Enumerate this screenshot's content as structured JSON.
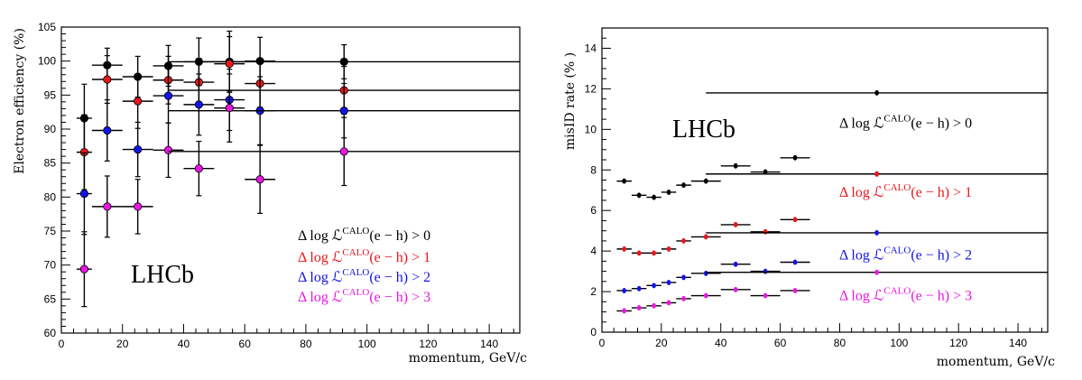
{
  "chart_data": [
    {
      "type": "scatter",
      "xlabel": "momentum, GeV/c",
      "ylabel": "Electron efficiency (%)",
      "xlim": [
        0,
        150
      ],
      "ylim": [
        60,
        105
      ],
      "xticks": [
        0,
        20,
        40,
        60,
        80,
        100,
        120,
        140
      ],
      "yticks": [
        60,
        65,
        70,
        75,
        80,
        85,
        90,
        95,
        100,
        105
      ],
      "annotation": "LHCb",
      "legend_position": "bottom-right",
      "series": [
        {
          "name": "Δ log ℒCALO(e − h) > 0",
          "label": {
            "prefix": "Δ log ℒ",
            "sup": "CALO",
            "suffix": "(e − h) > 0"
          },
          "color": "#000000",
          "points": [
            {
              "x": 7.5,
              "y": 91.6,
              "xerr": 2.5,
              "yerr": 5.0
            },
            {
              "x": 15,
              "y": 99.4,
              "xerr": 5,
              "yerr": 2.5
            },
            {
              "x": 25,
              "y": 97.7,
              "xerr": 5,
              "yerr": 3.0
            },
            {
              "x": 35,
              "y": 99.3,
              "xerr": 5,
              "yerr": 3.0
            },
            {
              "x": 45,
              "y": 99.9,
              "xerr": 5,
              "yerr": 3.5
            },
            {
              "x": 55,
              "y": 99.9,
              "xerr": 5,
              "yerr": 4.5
            },
            {
              "x": 65,
              "y": 100.0,
              "xerr": 5,
              "yerr": 3.5
            },
            {
              "x": 92.5,
              "y": 99.9,
              "xerr": 57.5,
              "yerr": 2.5
            }
          ]
        },
        {
          "name": "Δ log ℒCALO(e − h) > 1",
          "label": {
            "prefix": "Δ log ℒ",
            "sup": "CALO",
            "suffix": "(e − h) > 1"
          },
          "color": "#e8161c",
          "points": [
            {
              "x": 7.5,
              "y": 86.6,
              "xerr": 2.5,
              "yerr": 5.5
            },
            {
              "x": 15,
              "y": 97.3,
              "xerr": 5,
              "yerr": 3.5
            },
            {
              "x": 25,
              "y": 94.1,
              "xerr": 5,
              "yerr": 4.0
            },
            {
              "x": 35,
              "y": 97.2,
              "xerr": 5,
              "yerr": 3.5
            },
            {
              "x": 45,
              "y": 96.9,
              "xerr": 5,
              "yerr": 3.5
            },
            {
              "x": 55,
              "y": 99.6,
              "xerr": 5,
              "yerr": 4.0
            },
            {
              "x": 65,
              "y": 96.7,
              "xerr": 5,
              "yerr": 3.5
            },
            {
              "x": 92.5,
              "y": 95.7,
              "xerr": 57.5,
              "yerr": 3.5
            }
          ]
        },
        {
          "name": "Δ log ℒCALO(e − h) > 2",
          "label": {
            "prefix": "Δ log ℒ",
            "sup": "CALO",
            "suffix": "(e − h) > 2"
          },
          "color": "#1414e6",
          "points": [
            {
              "x": 7.5,
              "y": 80.5,
              "xerr": 2.5,
              "yerr": 6.0
            },
            {
              "x": 15,
              "y": 89.8,
              "xerr": 5,
              "yerr": 4.5
            },
            {
              "x": 25,
              "y": 87.0,
              "xerr": 5,
              "yerr": 4.0
            },
            {
              "x": 35,
              "y": 94.9,
              "xerr": 5,
              "yerr": 4.0
            },
            {
              "x": 45,
              "y": 93.6,
              "xerr": 5,
              "yerr": 4.5
            },
            {
              "x": 55,
              "y": 94.3,
              "xerr": 5,
              "yerr": 4.5
            },
            {
              "x": 65,
              "y": 92.7,
              "xerr": 5,
              "yerr": 5.0
            },
            {
              "x": 92.5,
              "y": 92.7,
              "xerr": 57.5,
              "yerr": 4.0
            }
          ]
        },
        {
          "name": "Δ log ℒCALO(e − h) > 3",
          "label": {
            "prefix": "Δ log ℒ",
            "sup": "CALO",
            "suffix": "(e − h) > 3"
          },
          "color": "#e817e0",
          "points": [
            {
              "x": 7.5,
              "y": 69.4,
              "xerr": 2.5,
              "yerr": 5.5
            },
            {
              "x": 15,
              "y": 78.6,
              "xerr": 5,
              "yerr": 4.5
            },
            {
              "x": 25,
              "y": 78.6,
              "xerr": 5,
              "yerr": 4.0
            },
            {
              "x": 35,
              "y": 86.9,
              "xerr": 5,
              "yerr": 4.0
            },
            {
              "x": 45,
              "y": 84.2,
              "xerr": 5,
              "yerr": 4.0
            },
            {
              "x": 55,
              "y": 93.1,
              "xerr": 5,
              "yerr": 5.0
            },
            {
              "x": 65,
              "y": 82.6,
              "xerr": 5,
              "yerr": 5.0
            },
            {
              "x": 92.5,
              "y": 86.7,
              "xerr": 57.5,
              "yerr": 5.0
            }
          ]
        }
      ]
    },
    {
      "type": "scatter",
      "xlabel": "momentum, GeV/c",
      "ylabel": "misID rate (% )",
      "xlim": [
        0,
        150
      ],
      "ylim": [
        0,
        15
      ],
      "xticks": [
        0,
        20,
        40,
        60,
        80,
        100,
        120,
        140
      ],
      "yticks": [
        0,
        2,
        4,
        6,
        8,
        10,
        12,
        14
      ],
      "annotation": "LHCb",
      "legend_position": "inline-right",
      "series": [
        {
          "name": "Δ log ℒCALO(e − h) > 0",
          "label": {
            "prefix": "Δ log ℒ",
            "sup": "CALO",
            "suffix": "(e − h) > 0"
          },
          "label_y": 10.3,
          "color": "#000000",
          "points": [
            {
              "x": 7.5,
              "y": 7.45,
              "xerr": 2.5,
              "yerr": 0.12
            },
            {
              "x": 12.5,
              "y": 6.75,
              "xerr": 2.5,
              "yerr": 0.12
            },
            {
              "x": 17.5,
              "y": 6.65,
              "xerr": 2.5,
              "yerr": 0.12
            },
            {
              "x": 22.5,
              "y": 6.9,
              "xerr": 2.5,
              "yerr": 0.12
            },
            {
              "x": 27.5,
              "y": 7.25,
              "xerr": 2.5,
              "yerr": 0.12
            },
            {
              "x": 35,
              "y": 7.45,
              "xerr": 5,
              "yerr": 0.12
            },
            {
              "x": 45,
              "y": 8.2,
              "xerr": 5,
              "yerr": 0.12
            },
            {
              "x": 55,
              "y": 7.9,
              "xerr": 5,
              "yerr": 0.12
            },
            {
              "x": 65,
              "y": 8.6,
              "xerr": 5,
              "yerr": 0.12
            },
            {
              "x": 92.5,
              "y": 11.8,
              "xerr": 57.5,
              "yerr": 0.1
            },
            {
              "x": 92.5,
              "y": 7.8,
              "xerr": 57.5,
              "yerr": 0.0
            }
          ]
        },
        {
          "name": "Δ log ℒCALO(e − h) > 1",
          "label": {
            "prefix": "Δ log ℒ",
            "sup": "CALO",
            "suffix": "(e − h) > 1"
          },
          "label_y": 6.9,
          "color": "#e8161c",
          "points": [
            {
              "x": 7.5,
              "y": 4.1,
              "xerr": 2.5,
              "yerr": 0.1
            },
            {
              "x": 12.5,
              "y": 3.9,
              "xerr": 2.5,
              "yerr": 0.1
            },
            {
              "x": 17.5,
              "y": 3.9,
              "xerr": 2.5,
              "yerr": 0.1
            },
            {
              "x": 22.5,
              "y": 4.1,
              "xerr": 2.5,
              "yerr": 0.1
            },
            {
              "x": 27.5,
              "y": 4.5,
              "xerr": 2.5,
              "yerr": 0.1
            },
            {
              "x": 35,
              "y": 4.7,
              "xerr": 5,
              "yerr": 0.1
            },
            {
              "x": 45,
              "y": 5.3,
              "xerr": 5,
              "yerr": 0.1
            },
            {
              "x": 55,
              "y": 4.95,
              "xerr": 5,
              "yerr": 0.1
            },
            {
              "x": 65,
              "y": 5.55,
              "xerr": 5,
              "yerr": 0.1
            },
            {
              "x": 92.5,
              "y": 7.8,
              "xerr": 57.5,
              "yerr": 0.1
            }
          ]
        },
        {
          "name": "Δ log ℒCALO(e − h) > 2",
          "label": {
            "prefix": "Δ log ℒ",
            "sup": "CALO",
            "suffix": "(e − h) > 2"
          },
          "label_y": 3.8,
          "color": "#1414e6",
          "points": [
            {
              "x": 7.5,
              "y": 2.05,
              "xerr": 2.5,
              "yerr": 0.08
            },
            {
              "x": 12.5,
              "y": 2.15,
              "xerr": 2.5,
              "yerr": 0.08
            },
            {
              "x": 17.5,
              "y": 2.3,
              "xerr": 2.5,
              "yerr": 0.08
            },
            {
              "x": 22.5,
              "y": 2.45,
              "xerr": 2.5,
              "yerr": 0.08
            },
            {
              "x": 27.5,
              "y": 2.7,
              "xerr": 2.5,
              "yerr": 0.08
            },
            {
              "x": 35,
              "y": 2.9,
              "xerr": 5,
              "yerr": 0.08
            },
            {
              "x": 45,
              "y": 3.35,
              "xerr": 5,
              "yerr": 0.08
            },
            {
              "x": 55,
              "y": 3.0,
              "xerr": 5,
              "yerr": 0.08
            },
            {
              "x": 65,
              "y": 3.45,
              "xerr": 5,
              "yerr": 0.08
            },
            {
              "x": 92.5,
              "y": 4.9,
              "xerr": 57.5,
              "yerr": 0.08
            }
          ]
        },
        {
          "name": "Δ log ℒCALO(e − h) > 3",
          "label": {
            "prefix": "Δ log ℒ",
            "sup": "CALO",
            "suffix": "(e − h) > 3"
          },
          "label_y": 1.8,
          "color": "#e817e0",
          "points": [
            {
              "x": 7.5,
              "y": 1.05,
              "xerr": 2.5,
              "yerr": 0.06
            },
            {
              "x": 12.5,
              "y": 1.2,
              "xerr": 2.5,
              "yerr": 0.06
            },
            {
              "x": 17.5,
              "y": 1.3,
              "xerr": 2.5,
              "yerr": 0.06
            },
            {
              "x": 22.5,
              "y": 1.45,
              "xerr": 2.5,
              "yerr": 0.06
            },
            {
              "x": 27.5,
              "y": 1.65,
              "xerr": 2.5,
              "yerr": 0.06
            },
            {
              "x": 35,
              "y": 1.8,
              "xerr": 5,
              "yerr": 0.06
            },
            {
              "x": 45,
              "y": 2.1,
              "xerr": 5,
              "yerr": 0.06
            },
            {
              "x": 55,
              "y": 1.8,
              "xerr": 5,
              "yerr": 0.06
            },
            {
              "x": 65,
              "y": 2.05,
              "xerr": 5,
              "yerr": 0.06
            },
            {
              "x": 92.5,
              "y": 2.95,
              "xerr": 57.5,
              "yerr": 0.06
            }
          ]
        }
      ]
    }
  ]
}
